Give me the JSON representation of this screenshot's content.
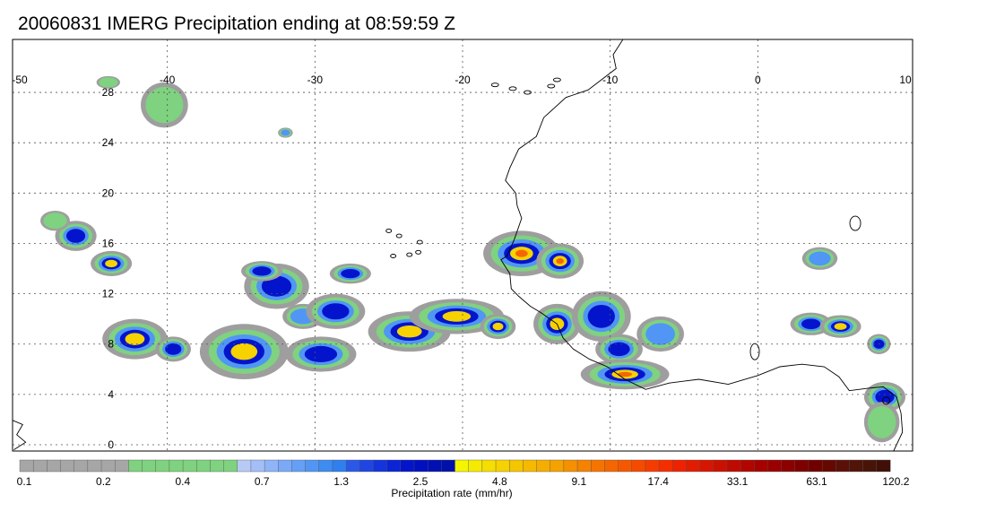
{
  "title": "20060831 IMERG Precipitation ending at 08:59:59 Z",
  "map": {
    "lon_range": [
      -50,
      10
    ],
    "lat_range": [
      0,
      30
    ],
    "lon_ticks": [
      -50,
      -40,
      -30,
      -20,
      -10,
      0,
      10
    ],
    "lat_ticks": [
      0,
      4,
      8,
      12,
      16,
      20,
      24,
      28
    ],
    "grid": true,
    "coastline_color": "#000000",
    "grid_color": "#555555"
  },
  "colorbar": {
    "label": "Precipitation rate (mm/hr)",
    "tick_labels": [
      "0.1",
      "0.2",
      "0.4",
      "0.7",
      "1.3",
      "2.5",
      "4.8",
      "9.1",
      "17.4",
      "33.1",
      "63.1",
      "120.2"
    ],
    "colors": [
      "#a6a6a6",
      "#a6a6a6",
      "#a6a6a6",
      "#a6a6a6",
      "#a6a6a6",
      "#a6a6a6",
      "#a6a6a6",
      "#a6a6a6",
      "#7fd27f",
      "#7fd27f",
      "#7fd27f",
      "#7fd27f",
      "#7fd27f",
      "#7fd27f",
      "#7fd27f",
      "#7fd27f",
      "#b9c9f5",
      "#a4bff7",
      "#8fb4f8",
      "#7aaaf7",
      "#65a0f6",
      "#5196f4",
      "#3e8bf1",
      "#2f7fee",
      "#2a58e8",
      "#1f45e2",
      "#1434dc",
      "#0a24d6",
      "#0414cc",
      "#0010c0",
      "#0010b4",
      "#0010a8",
      "#f5f500",
      "#f5ea00",
      "#f5de00",
      "#f5d200",
      "#f5c600",
      "#f5ba00",
      "#f5ae00",
      "#f5a200",
      "#f59000",
      "#f58200",
      "#f57400",
      "#f56600",
      "#f55800",
      "#f54a00",
      "#f53c00",
      "#f52e00",
      "#ee2200",
      "#e21c00",
      "#d61600",
      "#ca1000",
      "#be0a00",
      "#b20500",
      "#a60000",
      "#9a0000",
      "#8c0000",
      "#7e0000",
      "#700000",
      "#640800",
      "#5a1008",
      "#501408",
      "#481408",
      "#401008"
    ]
  },
  "precip_cells": [
    {
      "lon": -46.2,
      "lat": 16.6,
      "rx": 1.4,
      "ry": 1.2,
      "peak": 3
    },
    {
      "lon": -43.8,
      "lat": 14.4,
      "rx": 1.4,
      "ry": 1.0,
      "peak": 4
    },
    {
      "lon": -47.6,
      "lat": 17.8,
      "rx": 1.0,
      "ry": 0.8,
      "peak": 1
    },
    {
      "lon": -42.2,
      "lat": 8.4,
      "rx": 2.2,
      "ry": 1.6,
      "peak": 4
    },
    {
      "lon": -39.6,
      "lat": 7.6,
      "rx": 1.2,
      "ry": 1.0,
      "peak": 3
    },
    {
      "lon": -34.8,
      "lat": 7.4,
      "rx": 3.0,
      "ry": 2.2,
      "peak": 4
    },
    {
      "lon": -32.6,
      "lat": 12.6,
      "rx": 2.2,
      "ry": 1.8,
      "peak": 3
    },
    {
      "lon": -33.6,
      "lat": 13.8,
      "rx": 1.4,
      "ry": 0.8,
      "peak": 3
    },
    {
      "lon": -30.8,
      "lat": 10.2,
      "rx": 1.4,
      "ry": 1.0,
      "peak": 2
    },
    {
      "lon": -29.6,
      "lat": 7.2,
      "rx": 2.4,
      "ry": 1.4,
      "peak": 3
    },
    {
      "lon": -28.6,
      "lat": 10.6,
      "rx": 2.0,
      "ry": 1.4,
      "peak": 3
    },
    {
      "lon": -27.6,
      "lat": 13.6,
      "rx": 1.4,
      "ry": 0.8,
      "peak": 3
    },
    {
      "lon": -23.6,
      "lat": 9.0,
      "rx": 2.8,
      "ry": 1.6,
      "peak": 4
    },
    {
      "lon": -20.4,
      "lat": 10.2,
      "rx": 3.2,
      "ry": 1.4,
      "peak": 4
    },
    {
      "lon": -17.6,
      "lat": 9.4,
      "rx": 1.2,
      "ry": 1.0,
      "peak": 4
    },
    {
      "lon": -16.0,
      "lat": 15.2,
      "rx": 2.6,
      "ry": 1.8,
      "peak": 5
    },
    {
      "lon": -13.4,
      "lat": 14.6,
      "rx": 1.6,
      "ry": 1.4,
      "peak": 5
    },
    {
      "lon": -13.6,
      "lat": 9.6,
      "rx": 1.6,
      "ry": 1.6,
      "peak": 4
    },
    {
      "lon": -10.6,
      "lat": 10.2,
      "rx": 2.0,
      "ry": 2.0,
      "peak": 3
    },
    {
      "lon": -9.4,
      "lat": 7.6,
      "rx": 1.6,
      "ry": 1.2,
      "peak": 3
    },
    {
      "lon": -9.0,
      "lat": 5.6,
      "rx": 3.0,
      "ry": 1.2,
      "peak": 5
    },
    {
      "lon": -6.6,
      "lat": 8.8,
      "rx": 1.6,
      "ry": 1.4,
      "peak": 2
    },
    {
      "lon": 3.6,
      "lat": 9.6,
      "rx": 1.4,
      "ry": 0.9,
      "peak": 3
    },
    {
      "lon": 5.6,
      "lat": 9.4,
      "rx": 1.4,
      "ry": 0.9,
      "peak": 4
    },
    {
      "lon": 8.2,
      "lat": 8.0,
      "rx": 0.8,
      "ry": 0.8,
      "peak": 3
    },
    {
      "lon": 4.2,
      "lat": 14.8,
      "rx": 1.2,
      "ry": 0.9,
      "peak": 2
    },
    {
      "lon": 8.6,
      "lat": 3.8,
      "rx": 1.4,
      "ry": 1.2,
      "peak": 3
    },
    {
      "lon": 8.4,
      "lat": 1.8,
      "rx": 1.2,
      "ry": 1.6,
      "peak": 1
    },
    {
      "lon": -40.2,
      "lat": 27.0,
      "rx": 1.6,
      "ry": 1.8,
      "peak": 1
    },
    {
      "lon": -44.0,
      "lat": 28.8,
      "rx": 0.8,
      "ry": 0.5,
      "peak": 1
    },
    {
      "lon": -32.0,
      "lat": 24.8,
      "rx": 0.5,
      "ry": 0.4,
      "peak": 2
    }
  ]
}
